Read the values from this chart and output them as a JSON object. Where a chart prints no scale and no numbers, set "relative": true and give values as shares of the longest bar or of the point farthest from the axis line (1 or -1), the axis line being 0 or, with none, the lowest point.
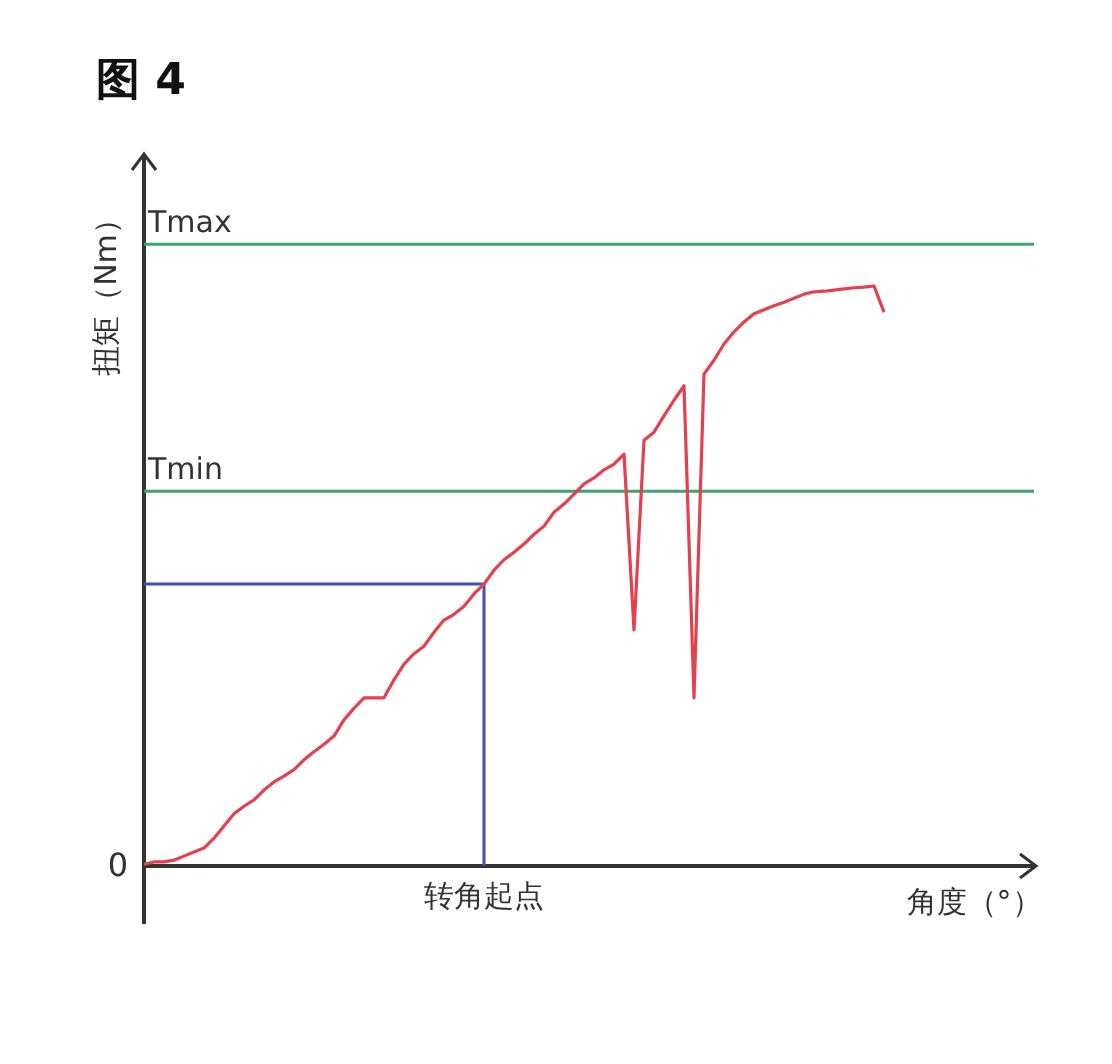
{
  "chart_data": {
    "type": "line",
    "title": "图 4",
    "xlabel": "角度（°）",
    "ylabel": "扭矩（Nm）",
    "relative": true,
    "marker": "none",
    "line_style": "solid",
    "categories": [
      null,
      null,
      null,
      null,
      null,
      null,
      null,
      null,
      null,
      null,
      null,
      null,
      null,
      null,
      null,
      null,
      null,
      null,
      null,
      null,
      null,
      null,
      null,
      null,
      null,
      null,
      null,
      null,
      null,
      null,
      null,
      null,
      null,
      null,
      null,
      null,
      null,
      null,
      null,
      null,
      null,
      null,
      null,
      null,
      null,
      null,
      null,
      null,
      null,
      null,
      null,
      null,
      null,
      null,
      null,
      null,
      null,
      null,
      null,
      null,
      null,
      null,
      null,
      null,
      null,
      null,
      null,
      null,
      null,
      null,
      null,
      null,
      null,
      null,
      null
    ],
    "series": [
      {
        "color": "#e5404f",
        "values": [
          0.003,
          0.007,
          0.007,
          0.01,
          0.017,
          0.024,
          0.031,
          0.048,
          0.069,
          0.09,
          0.103,
          0.114,
          0.131,
          0.145,
          0.155,
          0.166,
          0.183,
          0.197,
          0.21,
          0.224,
          0.252,
          0.272,
          0.29,
          0.29,
          0.29,
          0.321,
          0.348,
          0.366,
          0.379,
          0.403,
          0.424,
          0.434,
          0.448,
          0.469,
          0.486,
          0.51,
          0.528,
          0.541,
          0.555,
          0.572,
          0.586,
          0.61,
          0.624,
          0.641,
          0.659,
          0.669,
          0.683,
          0.693,
          0.71,
          0.407,
          0.734,
          0.748,
          0.776,
          0.803,
          0.828,
          0.29,
          0.848,
          0.872,
          0.9,
          0.921,
          0.938,
          0.952,
          0.959,
          0.966,
          0.972,
          0.979,
          0.986,
          0.99,
          0.991,
          0.993,
          0.995,
          0.997,
          0.998,
          1,
          0.955
        ]
      }
    ],
    "ref_lines": [
      {
        "axis": "y",
        "value": 1.072,
        "label": "Tmax",
        "color": "#3ba56b"
      },
      {
        "axis": "y",
        "value": 0.646,
        "label": "Tmin",
        "color": "#3ba56b"
      },
      {
        "axis": "y",
        "value": 0.486,
        "label": "转角起点",
        "color": "#4352a8"
      }
    ],
    "annotations": [
      "0"
    ]
  }
}
